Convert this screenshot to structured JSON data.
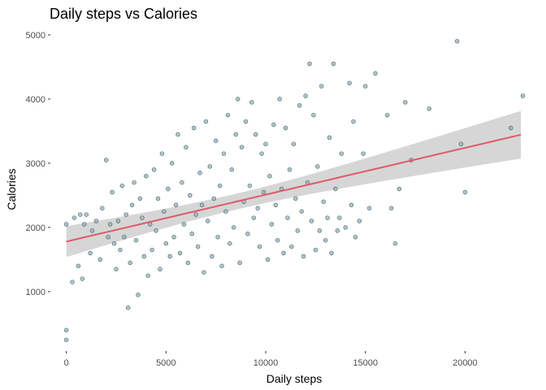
{
  "chart_data": {
    "type": "scatter",
    "title": "Daily steps vs Calories",
    "xlabel": "Daily steps",
    "ylabel": "Calories",
    "xlim": [
      -800,
      23000
    ],
    "ylim": [
      75,
      5075
    ],
    "x_ticks": [
      0,
      5000,
      10000,
      15000,
      20000
    ],
    "y_ticks": [
      1000,
      2000,
      3000,
      4000,
      5000
    ],
    "grid": false,
    "legend": "none",
    "colors": {
      "point_fill": "#8faeb5",
      "point_stroke": "#2e4f58",
      "fit_line": "#e05a6a",
      "ci_band": "#c8c8c8"
    },
    "trend": {
      "method": "linear",
      "intercept": 1780,
      "slope": 0.073,
      "x_range": [
        0,
        22800
      ]
    },
    "points": [
      [
        0,
        250
      ],
      [
        0,
        400
      ],
      [
        0,
        2050
      ],
      [
        300,
        1150
      ],
      [
        400,
        2150
      ],
      [
        600,
        1400
      ],
      [
        700,
        2200
      ],
      [
        800,
        1200
      ],
      [
        900,
        2050
      ],
      [
        1000,
        2200
      ],
      [
        1200,
        1600
      ],
      [
        1300,
        1950
      ],
      [
        1500,
        2100
      ],
      [
        1700,
        1500
      ],
      [
        1800,
        2300
      ],
      [
        2000,
        3050
      ],
      [
        2100,
        1850
      ],
      [
        2200,
        2050
      ],
      [
        2300,
        2550
      ],
      [
        2400,
        1750
      ],
      [
        2500,
        1350
      ],
      [
        2600,
        2100
      ],
      [
        2700,
        1650
      ],
      [
        2800,
        2650
      ],
      [
        2900,
        1850
      ],
      [
        3000,
        2200
      ],
      [
        3100,
        750
      ],
      [
        3200,
        1450
      ],
      [
        3300,
        2350
      ],
      [
        3400,
        2700
      ],
      [
        3500,
        1800
      ],
      [
        3600,
        950
      ],
      [
        3700,
        2450
      ],
      [
        3800,
        2150
      ],
      [
        3900,
        1550
      ],
      [
        4000,
        2800
      ],
      [
        4100,
        1250
      ],
      [
        4200,
        2050
      ],
      [
        4300,
        1650
      ],
      [
        4400,
        2900
      ],
      [
        4500,
        1950
      ],
      [
        4600,
        2450
      ],
      [
        4700,
        1350
      ],
      [
        4800,
        3150
      ],
      [
        4900,
        2250
      ],
      [
        5000,
        1750
      ],
      [
        5100,
        2600
      ],
      [
        5200,
        1550
      ],
      [
        5300,
        3000
      ],
      [
        5400,
        1850
      ],
      [
        5500,
        2350
      ],
      [
        5600,
        3450
      ],
      [
        5700,
        1600
      ],
      [
        5800,
        2700
      ],
      [
        5900,
        2050
      ],
      [
        6000,
        3250
      ],
      [
        6100,
        1450
      ],
      [
        6200,
        2500
      ],
      [
        6300,
        1900
      ],
      [
        6400,
        3550
      ],
      [
        6500,
        2200
      ],
      [
        6600,
        1700
      ],
      [
        6700,
        2850
      ],
      [
        6800,
        2350
      ],
      [
        6900,
        1300
      ],
      [
        7000,
        3650
      ],
      [
        7100,
        2100
      ],
      [
        7200,
        2950
      ],
      [
        7300,
        1550
      ],
      [
        7400,
        2450
      ],
      [
        7500,
        3350
      ],
      [
        7600,
        1850
      ],
      [
        7700,
        2650
      ],
      [
        7800,
        1400
      ],
      [
        7900,
        3150
      ],
      [
        8000,
        2250
      ],
      [
        8100,
        3750
      ],
      [
        8200,
        1750
      ],
      [
        8300,
        2900
      ],
      [
        8400,
        2000
      ],
      [
        8500,
        3450
      ],
      [
        8600,
        4000
      ],
      [
        8700,
        1450
      ],
      [
        8800,
        3250
      ],
      [
        8900,
        2400
      ],
      [
        9000,
        3650
      ],
      [
        9100,
        1900
      ],
      [
        9200,
        2650
      ],
      [
        9300,
        3950
      ],
      [
        9400,
        2150
      ],
      [
        9500,
        3450
      ],
      [
        9600,
        2300
      ],
      [
        9700,
        1700
      ],
      [
        9800,
        3150
      ],
      [
        9900,
        2550
      ],
      [
        10000,
        3300
      ],
      [
        10100,
        1500
      ],
      [
        10200,
        2800
      ],
      [
        10300,
        2050
      ],
      [
        10400,
        3600
      ],
      [
        10500,
        2350
      ],
      [
        10600,
        1800
      ],
      [
        10700,
        4000
      ],
      [
        10800,
        2600
      ],
      [
        10900,
        1600
      ],
      [
        11000,
        3550
      ],
      [
        11100,
        2150
      ],
      [
        11200,
        2900
      ],
      [
        11300,
        1700
      ],
      [
        11400,
        3300
      ],
      [
        11500,
        2450
      ],
      [
        11600,
        1950
      ],
      [
        11700,
        3900
      ],
      [
        11800,
        2250
      ],
      [
        11900,
        1550
      ],
      [
        12000,
        4050
      ],
      [
        12100,
        2700
      ],
      [
        12200,
        4550
      ],
      [
        12300,
        2100
      ],
      [
        12400,
        3750
      ],
      [
        12500,
        1650
      ],
      [
        12600,
        2950
      ],
      [
        12700,
        1950
      ],
      [
        12800,
        4200
      ],
      [
        12900,
        2400
      ],
      [
        13000,
        1800
      ],
      [
        13100,
        2150
      ],
      [
        13200,
        3400
      ],
      [
        13300,
        1600
      ],
      [
        13400,
        4550
      ],
      [
        13500,
        2600
      ],
      [
        13600,
        1950
      ],
      [
        13700,
        2150
      ],
      [
        13800,
        3150
      ],
      [
        14000,
        2000
      ],
      [
        14200,
        4250
      ],
      [
        14300,
        2350
      ],
      [
        14400,
        3650
      ],
      [
        14500,
        1850
      ],
      [
        14700,
        2100
      ],
      [
        14900,
        3150
      ],
      [
        15000,
        4200
      ],
      [
        15200,
        2300
      ],
      [
        15500,
        4400
      ],
      [
        16100,
        3750
      ],
      [
        16300,
        2300
      ],
      [
        16500,
        1750
      ],
      [
        16700,
        2600
      ],
      [
        17000,
        3950
      ],
      [
        17300,
        3050
      ],
      [
        18200,
        3850
      ],
      [
        19600,
        4900
      ],
      [
        19800,
        3300
      ],
      [
        20000,
        2550
      ],
      [
        22300,
        3550
      ],
      [
        22900,
        4050
      ]
    ]
  }
}
